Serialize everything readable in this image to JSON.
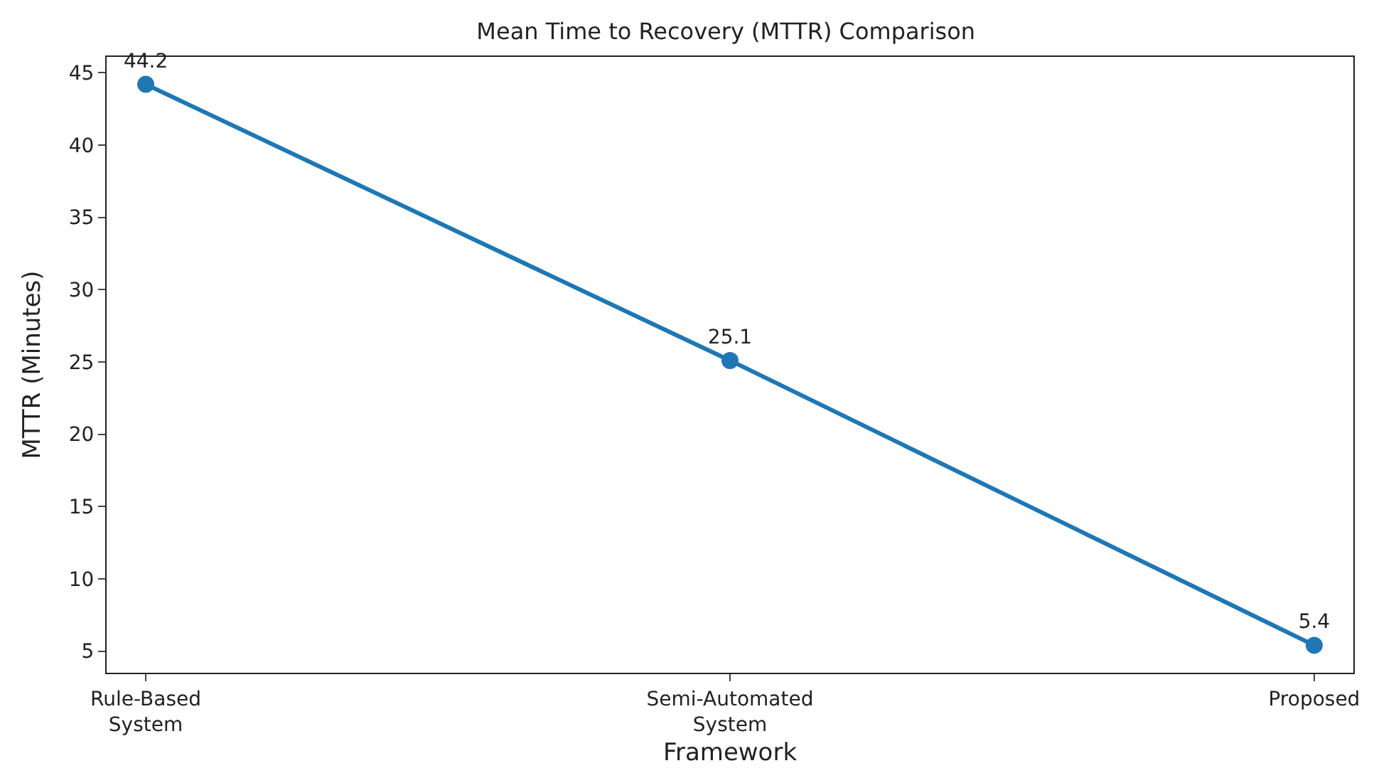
{
  "chart_data": {
    "type": "line",
    "title": "Mean Time to Recovery (MTTR) Comparison",
    "xlabel": "Framework",
    "ylabel": "MTTR (Minutes)",
    "categories": [
      "Rule-Based\nSystem",
      "Semi-Automated\nSystem",
      "Proposed"
    ],
    "series": [
      {
        "color": "#1f77b4",
        "values": [
          44.2,
          25.1,
          5.4
        ]
      }
    ],
    "ylim": [
      3.5,
      46.1
    ],
    "yticks": [
      5,
      10,
      15,
      20,
      25,
      30,
      35,
      40,
      45
    ],
    "marker": "circle",
    "line_style": "solid",
    "data_labels": true
  }
}
